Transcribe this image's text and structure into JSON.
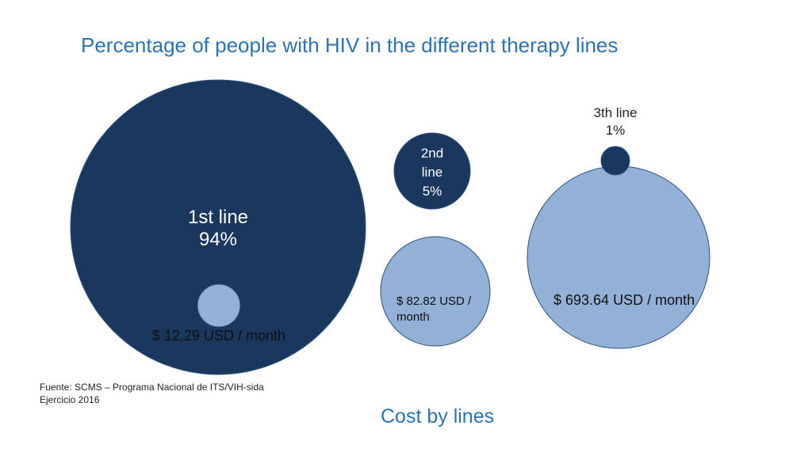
{
  "title": "Percentage of people with HIV in the different therapy lines",
  "subtitle": "Cost by lines",
  "source": {
    "line1": "Fuente: SCMS – Programa Nacional de ITS/VIH-sida",
    "line2": "Ejercicio 2016"
  },
  "colors": {
    "dark": "#1a375e",
    "light": "#93b1d6",
    "title": "#2a73b8"
  },
  "chart_data": {
    "type": "bubble",
    "title": "Percentage of people with HIV in the different therapy lines",
    "subtitle": "Cost by lines",
    "series": [
      {
        "name": "Share of people",
        "unit": "%"
      },
      {
        "name": "Cost per month",
        "unit": "USD / month"
      }
    ],
    "categories": [
      "1st line",
      "2nd line",
      "3th line"
    ],
    "items": [
      {
        "line": "1st line",
        "line_label": [
          "1st line",
          "94%"
        ],
        "percent": 94,
        "cost": 12.29,
        "cost_label": [
          "$ 12.29 USD / month"
        ]
      },
      {
        "line": "2nd line",
        "line_label": [
          "2nd",
          "line",
          "5%"
        ],
        "percent": 5,
        "cost": 82.82,
        "cost_label": [
          "$ 82.82 USD /",
          "month"
        ]
      },
      {
        "line": "3th line",
        "line_label": [
          "3th line",
          "1%"
        ],
        "percent": 1,
        "cost": 693.64,
        "cost_label": [
          "$ 693.64 USD / month"
        ]
      }
    ]
  }
}
